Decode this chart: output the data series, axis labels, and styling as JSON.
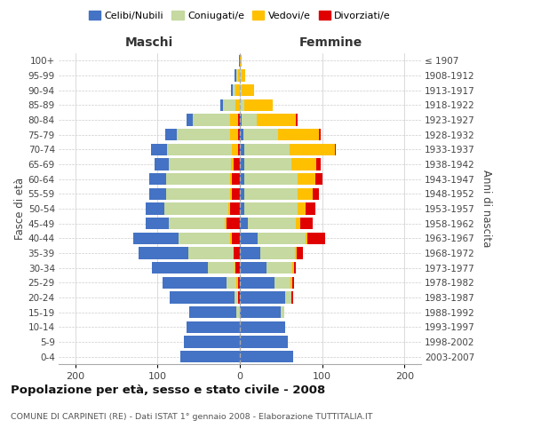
{
  "age_groups": [
    "0-4",
    "5-9",
    "10-14",
    "15-19",
    "20-24",
    "25-29",
    "30-34",
    "35-39",
    "40-44",
    "45-49",
    "50-54",
    "55-59",
    "60-64",
    "65-69",
    "70-74",
    "75-79",
    "80-84",
    "85-89",
    "90-94",
    "95-99",
    "100+"
  ],
  "birth_years": [
    "2003-2007",
    "1998-2002",
    "1993-1997",
    "1988-1992",
    "1983-1987",
    "1978-1982",
    "1973-1977",
    "1968-1972",
    "1963-1967",
    "1958-1962",
    "1953-1957",
    "1948-1952",
    "1943-1947",
    "1938-1942",
    "1933-1937",
    "1928-1932",
    "1923-1927",
    "1918-1922",
    "1913-1917",
    "1908-1912",
    "≤ 1907"
  ],
  "colors": {
    "celibe": "#4472c4",
    "coniugato": "#c5d9a0",
    "vedovo": "#ffc000",
    "divorziato": "#e00000"
  },
  "maschi": {
    "celibe": [
      72,
      68,
      65,
      58,
      78,
      78,
      68,
      60,
      55,
      28,
      22,
      20,
      20,
      18,
      20,
      14,
      8,
      4,
      2,
      2,
      1
    ],
    "coniugato": [
      0,
      0,
      0,
      4,
      5,
      12,
      32,
      55,
      62,
      68,
      78,
      78,
      78,
      75,
      78,
      65,
      45,
      15,
      4,
      2,
      0
    ],
    "vedovo": [
      0,
      0,
      0,
      0,
      0,
      2,
      2,
      0,
      2,
      2,
      2,
      2,
      2,
      3,
      8,
      10,
      10,
      5,
      5,
      2,
      0
    ],
    "divorziato": [
      0,
      0,
      0,
      0,
      2,
      2,
      5,
      8,
      10,
      16,
      12,
      10,
      10,
      8,
      2,
      2,
      2,
      0,
      0,
      0,
      0
    ]
  },
  "femmine": {
    "celibe": [
      65,
      58,
      55,
      50,
      55,
      42,
      32,
      25,
      22,
      10,
      5,
      5,
      5,
      5,
      5,
      4,
      2,
      0,
      0,
      0,
      0
    ],
    "coniugato": [
      0,
      0,
      0,
      4,
      8,
      20,
      32,
      42,
      58,
      58,
      65,
      65,
      65,
      58,
      55,
      42,
      18,
      5,
      2,
      2,
      0
    ],
    "vedovo": [
      0,
      0,
      0,
      0,
      0,
      2,
      2,
      2,
      2,
      5,
      10,
      18,
      22,
      30,
      55,
      50,
      48,
      35,
      15,
      4,
      2
    ],
    "divorziato": [
      0,
      0,
      0,
      0,
      2,
      2,
      2,
      8,
      22,
      15,
      12,
      8,
      8,
      5,
      2,
      2,
      2,
      0,
      0,
      0,
      0
    ]
  },
  "xlim": [
    -220,
    220
  ],
  "xticks": [
    -200,
    -100,
    0,
    100,
    200
  ],
  "xticklabels": [
    "200",
    "100",
    "0",
    "100",
    "200"
  ],
  "title": "Popolazione per età, sesso e stato civile - 2008",
  "subtitle": "COMUNE DI CARPINETI (RE) - Dati ISTAT 1° gennaio 2008 - Elaborazione TUTTITALIA.IT",
  "ylabel_left": "Fasce di età",
  "ylabel_right": "Anni di nascita",
  "label_maschi": "Maschi",
  "label_femmine": "Femmine",
  "legend_labels": [
    "Celibi/Nubili",
    "Coniugati/e",
    "Vedovi/e",
    "Divorziati/e"
  ],
  "bg_color": "#ffffff",
  "grid_color": "#cccccc"
}
